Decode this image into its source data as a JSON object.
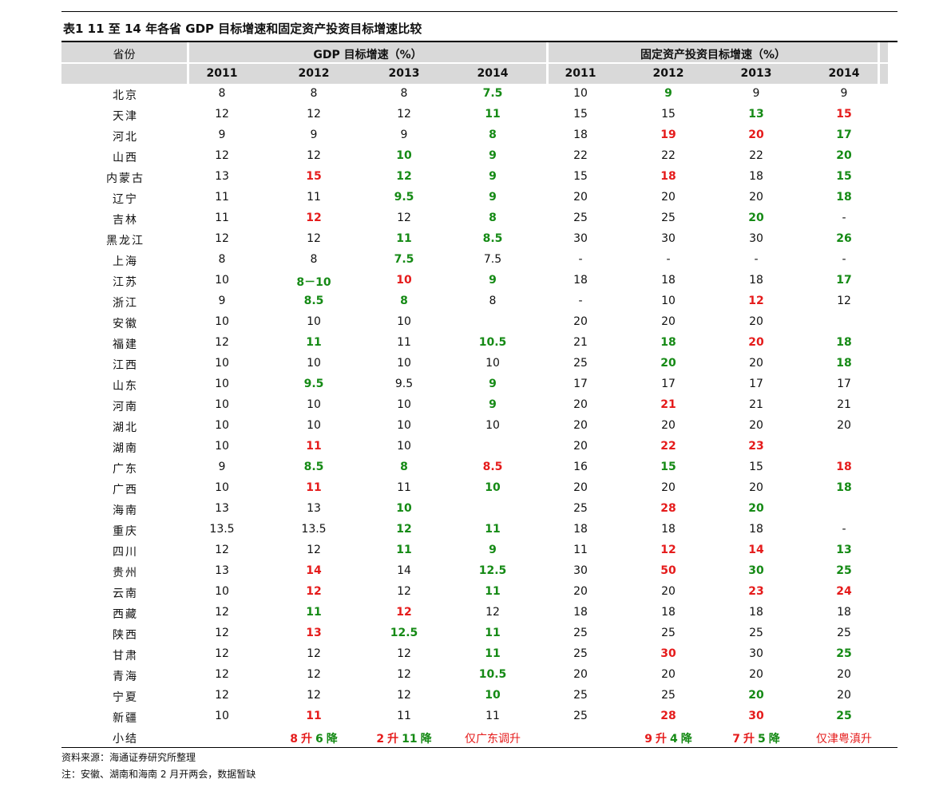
{
  "title": "表1   11 至 14 年各省 GDP 目标增速和固定资产投资目标增速比较",
  "header": {
    "province": "省份",
    "gdp_group": "GDP 目标增速（%）",
    "fai_group": "固定资产投资目标增速（%）",
    "years": [
      "2011",
      "2012",
      "2013",
      "2014",
      "2011",
      "2012",
      "2013",
      "2014"
    ]
  },
  "colors": {
    "green": "#158a15",
    "red": "#e51b1b",
    "header_bg": "#d9d9d9"
  },
  "rows": [
    {
      "p": "北京",
      "c": [
        [
          "8",
          "n"
        ],
        [
          "8",
          "n"
        ],
        [
          "8",
          "n"
        ],
        [
          "7.5",
          "g"
        ],
        [
          "10",
          "n"
        ],
        [
          "9",
          "g"
        ],
        [
          "9",
          "n"
        ],
        [
          "9",
          "n"
        ]
      ]
    },
    {
      "p": "天津",
      "c": [
        [
          "12",
          "n"
        ],
        [
          "12",
          "n"
        ],
        [
          "12",
          "n"
        ],
        [
          "11",
          "g"
        ],
        [
          "15",
          "n"
        ],
        [
          "15",
          "n"
        ],
        [
          "13",
          "g"
        ],
        [
          "15",
          "r"
        ]
      ]
    },
    {
      "p": "河北",
      "c": [
        [
          "9",
          "n"
        ],
        [
          "9",
          "n"
        ],
        [
          "9",
          "n"
        ],
        [
          "8",
          "g"
        ],
        [
          "18",
          "n"
        ],
        [
          "19",
          "r"
        ],
        [
          "20",
          "r"
        ],
        [
          "17",
          "g"
        ]
      ]
    },
    {
      "p": "山西",
      "c": [
        [
          "12",
          "n"
        ],
        [
          "12",
          "n"
        ],
        [
          "10",
          "g"
        ],
        [
          "9",
          "g"
        ],
        [
          "22",
          "n"
        ],
        [
          "22",
          "n"
        ],
        [
          "22",
          "n"
        ],
        [
          "20",
          "g"
        ]
      ]
    },
    {
      "p": "内蒙古",
      "c": [
        [
          "13",
          "n"
        ],
        [
          "15",
          "r"
        ],
        [
          "12",
          "g"
        ],
        [
          "9",
          "g"
        ],
        [
          "15",
          "n"
        ],
        [
          "18",
          "r"
        ],
        [
          "18",
          "n"
        ],
        [
          "15",
          "g"
        ]
      ]
    },
    {
      "p": "辽宁",
      "c": [
        [
          "11",
          "n"
        ],
        [
          "11",
          "n"
        ],
        [
          "9.5",
          "g"
        ],
        [
          "9",
          "g"
        ],
        [
          "20",
          "n"
        ],
        [
          "20",
          "n"
        ],
        [
          "20",
          "n"
        ],
        [
          "18",
          "g"
        ]
      ]
    },
    {
      "p": "吉林",
      "c": [
        [
          "11",
          "n"
        ],
        [
          "12",
          "r"
        ],
        [
          "12",
          "n"
        ],
        [
          "8",
          "g"
        ],
        [
          "25",
          "n"
        ],
        [
          "25",
          "n"
        ],
        [
          "20",
          "g"
        ],
        [
          "-",
          "n"
        ]
      ]
    },
    {
      "p": "黑龙江",
      "c": [
        [
          "12",
          "n"
        ],
        [
          "12",
          "n"
        ],
        [
          "11",
          "g"
        ],
        [
          "8.5",
          "g"
        ],
        [
          "30",
          "n"
        ],
        [
          "30",
          "n"
        ],
        [
          "30",
          "n"
        ],
        [
          "26",
          "g"
        ]
      ]
    },
    {
      "p": "上海",
      "c": [
        [
          "8",
          "n"
        ],
        [
          "8",
          "n"
        ],
        [
          "7.5",
          "g"
        ],
        [
          "7.5",
          "n"
        ],
        [
          "-",
          "n"
        ],
        [
          "-",
          "n"
        ],
        [
          "-",
          "n"
        ],
        [
          "-",
          "n"
        ]
      ]
    },
    {
      "p": "江苏",
      "c": [
        [
          "10",
          "n"
        ],
        [
          "8－10",
          "g"
        ],
        [
          "10",
          "r"
        ],
        [
          "9",
          "g"
        ],
        [
          "18",
          "n"
        ],
        [
          "18",
          "n"
        ],
        [
          "18",
          "n"
        ],
        [
          "17",
          "g"
        ]
      ]
    },
    {
      "p": "浙江",
      "c": [
        [
          "9",
          "n"
        ],
        [
          "8.5",
          "g"
        ],
        [
          "8",
          "g"
        ],
        [
          "8",
          "n"
        ],
        [
          "-",
          "n"
        ],
        [
          "10",
          "n"
        ],
        [
          "12",
          "r"
        ],
        [
          "12",
          "n"
        ]
      ]
    },
    {
      "p": "安徽",
      "c": [
        [
          "10",
          "n"
        ],
        [
          "10",
          "n"
        ],
        [
          "10",
          "n"
        ],
        [
          "",
          "n"
        ],
        [
          "20",
          "n"
        ],
        [
          "20",
          "n"
        ],
        [
          "20",
          "n"
        ],
        [
          "",
          "n"
        ]
      ]
    },
    {
      "p": "福建",
      "c": [
        [
          "12",
          "n"
        ],
        [
          "11",
          "g"
        ],
        [
          "11",
          "n"
        ],
        [
          "10.5",
          "g"
        ],
        [
          "21",
          "n"
        ],
        [
          "18",
          "g"
        ],
        [
          "20",
          "r"
        ],
        [
          "18",
          "g"
        ]
      ]
    },
    {
      "p": "江西",
      "c": [
        [
          "10",
          "n"
        ],
        [
          "10",
          "n"
        ],
        [
          "10",
          "n"
        ],
        [
          "10",
          "n"
        ],
        [
          "25",
          "n"
        ],
        [
          "20",
          "g"
        ],
        [
          "20",
          "n"
        ],
        [
          "18",
          "g"
        ]
      ]
    },
    {
      "p": "山东",
      "c": [
        [
          "10",
          "n"
        ],
        [
          "9.5",
          "g"
        ],
        [
          "9.5",
          "n"
        ],
        [
          "9",
          "g"
        ],
        [
          "17",
          "n"
        ],
        [
          "17",
          "n"
        ],
        [
          "17",
          "n"
        ],
        [
          "17",
          "n"
        ]
      ]
    },
    {
      "p": "河南",
      "c": [
        [
          "10",
          "n"
        ],
        [
          "10",
          "n"
        ],
        [
          "10",
          "n"
        ],
        [
          "9",
          "g"
        ],
        [
          "20",
          "n"
        ],
        [
          "21",
          "r"
        ],
        [
          "21",
          "n"
        ],
        [
          "21",
          "n"
        ]
      ]
    },
    {
      "p": "湖北",
      "c": [
        [
          "10",
          "n"
        ],
        [
          "10",
          "n"
        ],
        [
          "10",
          "n"
        ],
        [
          "10",
          "n"
        ],
        [
          "20",
          "n"
        ],
        [
          "20",
          "n"
        ],
        [
          "20",
          "n"
        ],
        [
          "20",
          "n"
        ]
      ]
    },
    {
      "p": "湖南",
      "c": [
        [
          "10",
          "n"
        ],
        [
          "11",
          "r"
        ],
        [
          "10",
          "n"
        ],
        [
          "",
          "n"
        ],
        [
          "20",
          "n"
        ],
        [
          "22",
          "r"
        ],
        [
          "23",
          "r"
        ],
        [
          "",
          "n"
        ]
      ]
    },
    {
      "p": "广东",
      "c": [
        [
          "9",
          "n"
        ],
        [
          "8.5",
          "g"
        ],
        [
          "8",
          "g"
        ],
        [
          "8.5",
          "r"
        ],
        [
          "16",
          "n"
        ],
        [
          "15",
          "g"
        ],
        [
          "15",
          "n"
        ],
        [
          "18",
          "r"
        ]
      ]
    },
    {
      "p": "广西",
      "c": [
        [
          "10",
          "n"
        ],
        [
          "11",
          "r"
        ],
        [
          "11",
          "n"
        ],
        [
          "10",
          "g"
        ],
        [
          "20",
          "n"
        ],
        [
          "20",
          "n"
        ],
        [
          "20",
          "n"
        ],
        [
          "18",
          "g"
        ]
      ]
    },
    {
      "p": "海南",
      "c": [
        [
          "13",
          "n"
        ],
        [
          "13",
          "n"
        ],
        [
          "10",
          "g"
        ],
        [
          "",
          "n"
        ],
        [
          "25",
          "n"
        ],
        [
          "28",
          "r"
        ],
        [
          "20",
          "g"
        ],
        [
          "",
          "n"
        ]
      ]
    },
    {
      "p": "重庆",
      "c": [
        [
          "13.5",
          "n"
        ],
        [
          "13.5",
          "n"
        ],
        [
          "12",
          "g"
        ],
        [
          "11",
          "g"
        ],
        [
          "18",
          "n"
        ],
        [
          "18",
          "n"
        ],
        [
          "18",
          "n"
        ],
        [
          "-",
          "n"
        ]
      ]
    },
    {
      "p": "四川",
      "c": [
        [
          "12",
          "n"
        ],
        [
          "12",
          "n"
        ],
        [
          "11",
          "g"
        ],
        [
          "9",
          "g"
        ],
        [
          "11",
          "n"
        ],
        [
          "12",
          "r"
        ],
        [
          "14",
          "r"
        ],
        [
          "13",
          "g"
        ]
      ]
    },
    {
      "p": "贵州",
      "c": [
        [
          "13",
          "n"
        ],
        [
          "14",
          "r"
        ],
        [
          "14",
          "n"
        ],
        [
          "12.5",
          "g"
        ],
        [
          "30",
          "n"
        ],
        [
          "50",
          "r"
        ],
        [
          "30",
          "g"
        ],
        [
          "25",
          "g"
        ]
      ]
    },
    {
      "p": "云南",
      "c": [
        [
          "10",
          "n"
        ],
        [
          "12",
          "r"
        ],
        [
          "12",
          "n"
        ],
        [
          "11",
          "g"
        ],
        [
          "20",
          "n"
        ],
        [
          "20",
          "n"
        ],
        [
          "23",
          "r"
        ],
        [
          "24",
          "r"
        ]
      ]
    },
    {
      "p": "西藏",
      "c": [
        [
          "12",
          "n"
        ],
        [
          "11",
          "g"
        ],
        [
          "12",
          "r"
        ],
        [
          "12",
          "n"
        ],
        [
          "18",
          "n"
        ],
        [
          "18",
          "n"
        ],
        [
          "18",
          "n"
        ],
        [
          "18",
          "n"
        ]
      ]
    },
    {
      "p": "陕西",
      "c": [
        [
          "12",
          "n"
        ],
        [
          "13",
          "r"
        ],
        [
          "12.5",
          "g"
        ],
        [
          "11",
          "g"
        ],
        [
          "25",
          "n"
        ],
        [
          "25",
          "n"
        ],
        [
          "25",
          "n"
        ],
        [
          "25",
          "n"
        ]
      ]
    },
    {
      "p": "甘肃",
      "c": [
        [
          "12",
          "n"
        ],
        [
          "12",
          "n"
        ],
        [
          "12",
          "n"
        ],
        [
          "11",
          "g"
        ],
        [
          "25",
          "n"
        ],
        [
          "30",
          "r"
        ],
        [
          "30",
          "n"
        ],
        [
          "25",
          "g"
        ]
      ]
    },
    {
      "p": "青海",
      "c": [
        [
          "12",
          "n"
        ],
        [
          "12",
          "n"
        ],
        [
          "12",
          "n"
        ],
        [
          "10.5",
          "g"
        ],
        [
          "20",
          "n"
        ],
        [
          "20",
          "n"
        ],
        [
          "20",
          "n"
        ],
        [
          "20",
          "n"
        ]
      ]
    },
    {
      "p": "宁夏",
      "c": [
        [
          "12",
          "n"
        ],
        [
          "12",
          "n"
        ],
        [
          "12",
          "n"
        ],
        [
          "10",
          "g"
        ],
        [
          "25",
          "n"
        ],
        [
          "25",
          "n"
        ],
        [
          "20",
          "g"
        ],
        [
          "20",
          "n"
        ]
      ]
    },
    {
      "p": "新疆",
      "c": [
        [
          "10",
          "n"
        ],
        [
          "11",
          "r"
        ],
        [
          "11",
          "n"
        ],
        [
          "11",
          "n"
        ],
        [
          "25",
          "n"
        ],
        [
          "28",
          "r"
        ],
        [
          "30",
          "r"
        ],
        [
          "25",
          "g"
        ]
      ]
    }
  ],
  "summary": {
    "label": "小结",
    "gdp_2012": {
      "a": "8",
      "b": "升",
      "c": "6",
      "d": "降"
    },
    "gdp_2013": {
      "a": "2",
      "b": "升",
      "c": "11",
      "d": "降"
    },
    "gdp_2014": "仅广东调升",
    "fai_2012": {
      "a": "9",
      "b": "升",
      "c": "4",
      "d": "降"
    },
    "fai_2013": {
      "a": "7",
      "b": "升",
      "c": "5",
      "d": "降"
    },
    "fai_2014": "仅津粤滇升"
  },
  "notes": {
    "source": "资料来源：海通证券研究所整理",
    "note": "注：安徽、湖南和海南 2 月开两会，数据暂缺"
  }
}
